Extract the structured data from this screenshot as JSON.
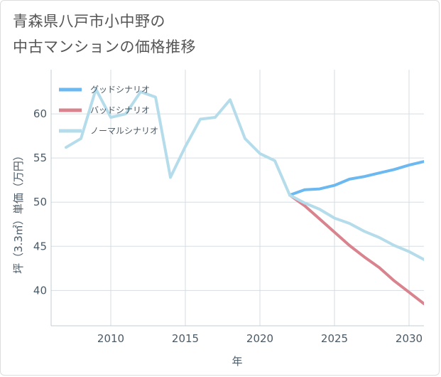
{
  "chart_data": {
    "type": "line",
    "title_lines": [
      "青森県八戸市小中野の",
      "中古マンションの価格推移"
    ],
    "xlabel": "年",
    "ylabel": "坪（3.3㎡）単価（万円）",
    "xlim": [
      2006,
      2031
    ],
    "ylim": [
      36,
      65
    ],
    "x_ticks": [
      2010,
      2015,
      2020,
      2025,
      2030
    ],
    "y_ticks": [
      40,
      45,
      50,
      55,
      60
    ],
    "grid": true,
    "legend_position": "top-left",
    "series": [
      {
        "name": "グッドシナリオ",
        "color": "#6cb8f0",
        "x": [
          2022,
          2023,
          2024,
          2025,
          2026,
          2027,
          2028,
          2029,
          2030,
          2031
        ],
        "y": [
          50.8,
          51.4,
          51.5,
          51.9,
          52.6,
          52.9,
          53.3,
          53.7,
          54.2,
          54.6
        ]
      },
      {
        "name": "バッドシナリオ",
        "color": "#d9838e",
        "x": [
          2022,
          2023,
          2024,
          2025,
          2026,
          2027,
          2028,
          2029,
          2030,
          2031
        ],
        "y": [
          50.8,
          49.6,
          48.1,
          46.6,
          45.1,
          43.8,
          42.6,
          41.1,
          39.8,
          38.5
        ]
      },
      {
        "name": "ノーマルシナリオ",
        "color": "#b5dcea",
        "x": [
          2007,
          2008,
          2009,
          2010,
          2011,
          2012,
          2013,
          2014,
          2015,
          2016,
          2017,
          2018,
          2019,
          2020,
          2021,
          2022,
          2023,
          2024,
          2025,
          2026,
          2027,
          2028,
          2029,
          2030,
          2031
        ],
        "y": [
          56.2,
          57.2,
          62.8,
          59.6,
          60.0,
          62.5,
          61.9,
          52.8,
          56.3,
          59.4,
          59.6,
          61.6,
          57.2,
          55.5,
          54.7,
          50.8,
          49.9,
          49.2,
          48.2,
          47.6,
          46.7,
          46.0,
          45.1,
          44.4,
          43.5
        ]
      }
    ]
  }
}
